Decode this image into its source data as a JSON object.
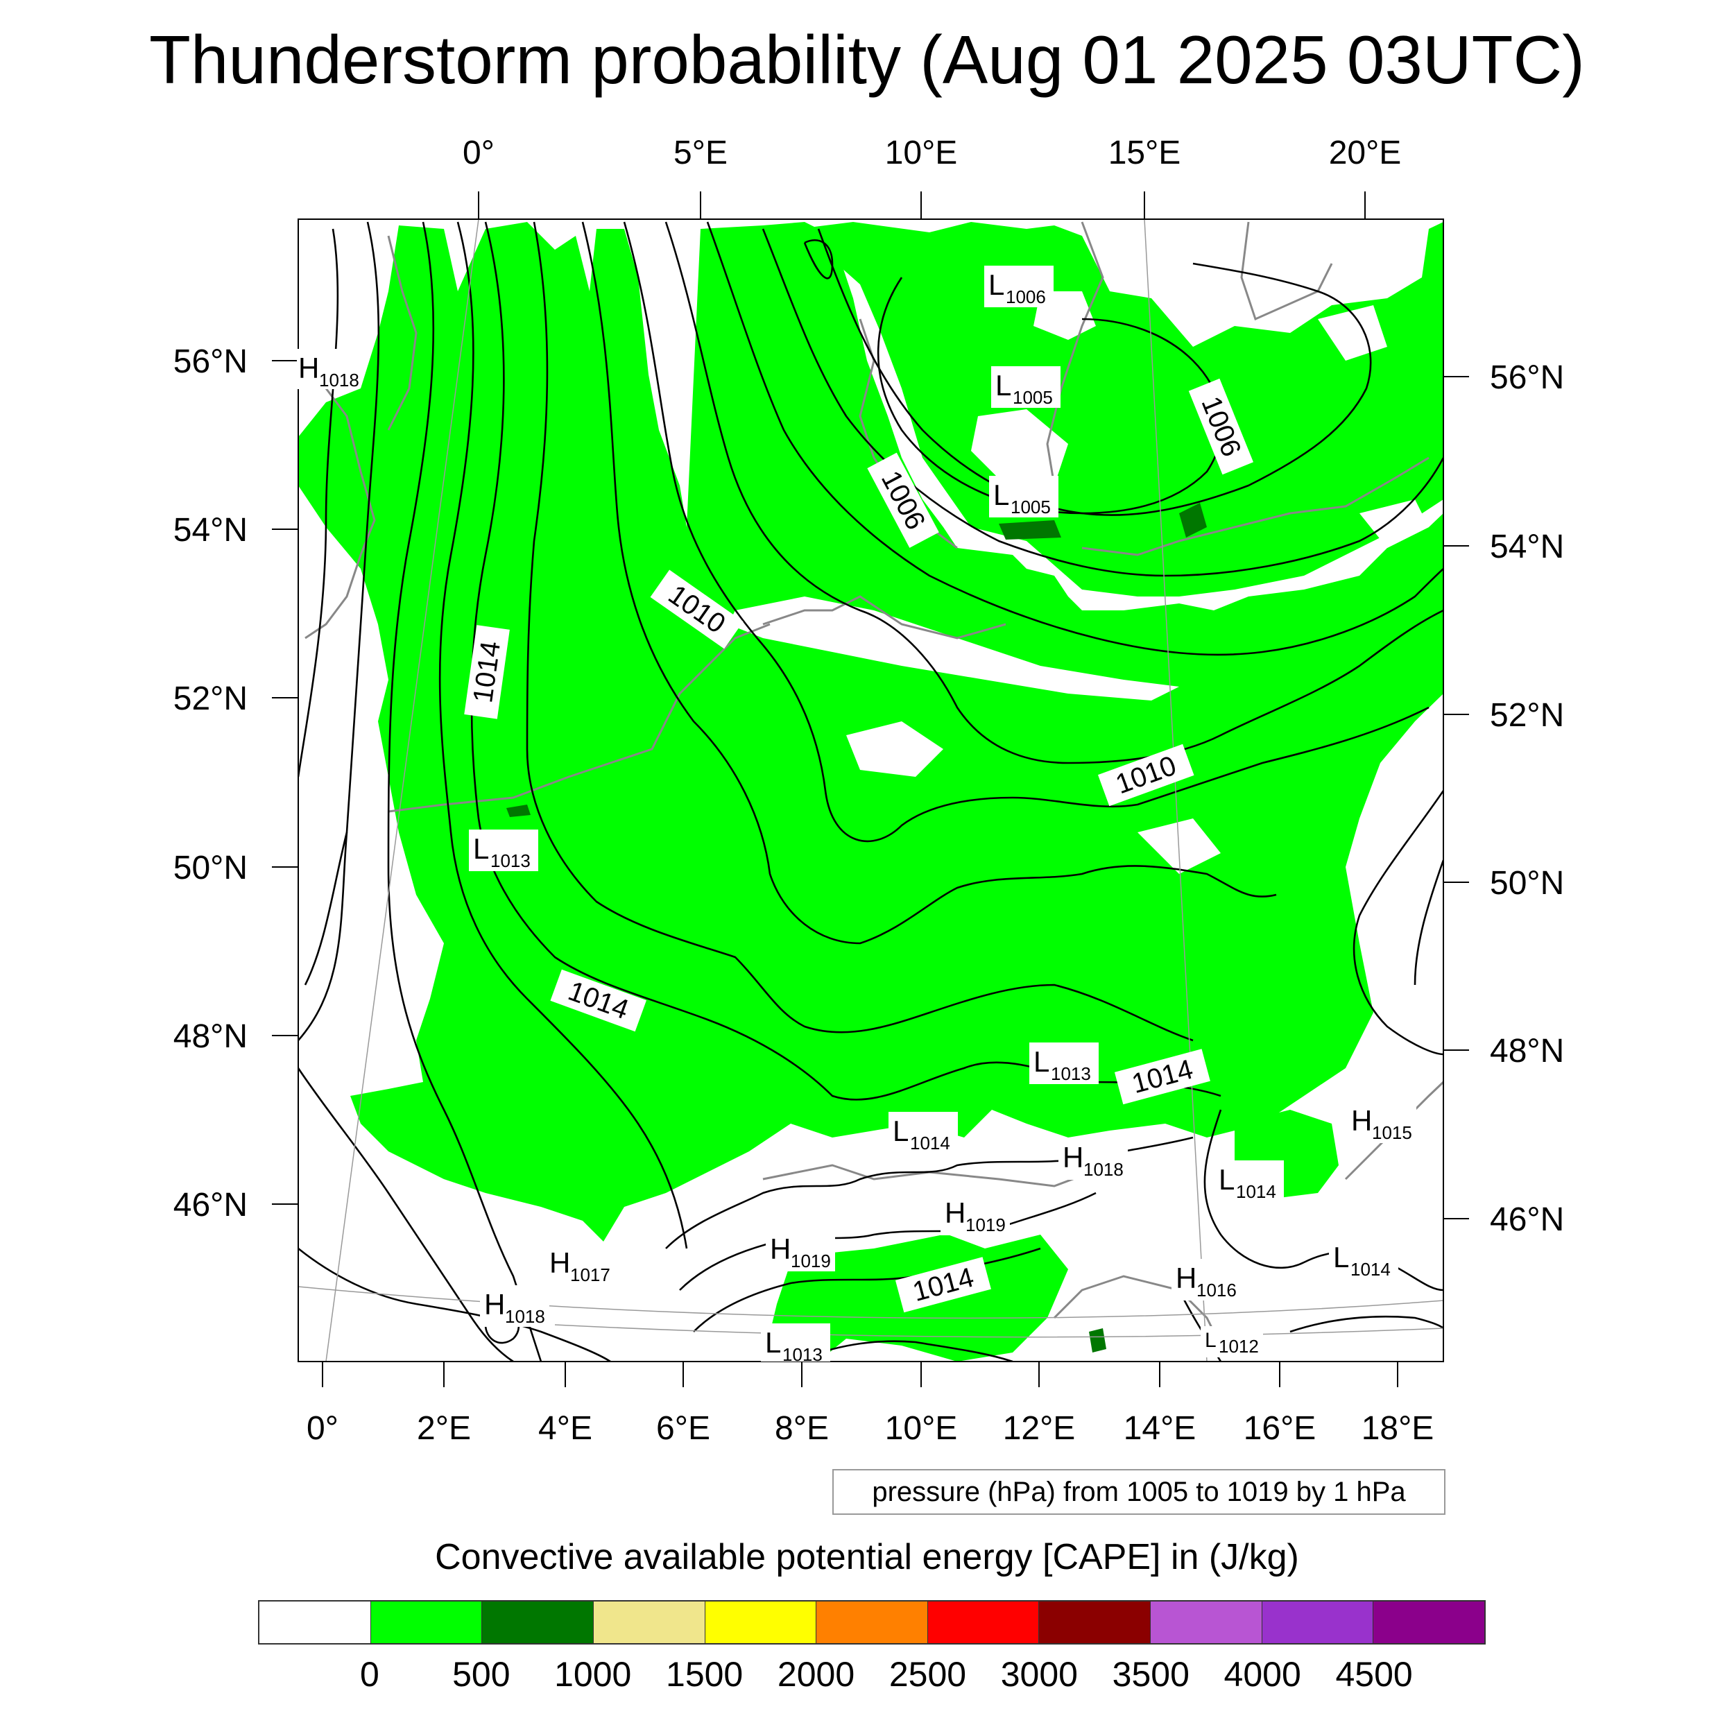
{
  "title": "Thunderstorm probability (Aug 01 2025 03UTC)",
  "top_lon_labels": [
    "0°",
    "5°E",
    "10°E",
    "15°E",
    "20°E"
  ],
  "bottom_lon_labels": [
    "0°",
    "2°E",
    "4°E",
    "6°E",
    "8°E",
    "10°E",
    "12°E",
    "14°E",
    "16°E",
    "18°E"
  ],
  "left_lat_labels": [
    "56°N",
    "54°N",
    "52°N",
    "50°N",
    "48°N",
    "46°N"
  ],
  "right_lat_labels": [
    "56°N",
    "54°N",
    "52°N",
    "50°N",
    "48°N",
    "46°N"
  ],
  "pressure_info": "pressure (hPa) from 1005 to 1019 by 1 hPa",
  "colorbar": {
    "title": "Convective available potential energy [CAPE] in (J/kg)",
    "colors": [
      "#ffffff",
      "#00ff00",
      "#007700",
      "#f0e68c",
      "#ffff00",
      "#ff8000",
      "#ff0000",
      "#8b0000",
      "#b855d3",
      "#9932cc",
      "#8b008b"
    ],
    "labels": [
      "0",
      "500",
      "1000",
      "1500",
      "2000",
      "2500",
      "3000",
      "3500",
      "4000",
      "4500"
    ]
  },
  "contour_labels": [
    "1014",
    "1010",
    "1006",
    "1006",
    "1010",
    "1014",
    "1014",
    "1014"
  ],
  "pressure_centers": [
    {
      "type": "H",
      "value": "1018"
    },
    {
      "type": "L",
      "value": "1006"
    },
    {
      "type": "L",
      "value": "1005"
    },
    {
      "type": "L",
      "value": "1005"
    },
    {
      "type": "L",
      "value": "1013"
    },
    {
      "type": "L",
      "value": "1013"
    },
    {
      "type": "L",
      "value": "1014"
    },
    {
      "type": "H",
      "value": "1018"
    },
    {
      "type": "H",
      "value": "1019"
    },
    {
      "type": "H",
      "value": "1019"
    },
    {
      "type": "H",
      "value": "1017"
    },
    {
      "type": "H",
      "value": "1018"
    },
    {
      "type": "L",
      "value": "1013"
    },
    {
      "type": "L",
      "value": "1014"
    },
    {
      "type": "H",
      "value": "1015"
    },
    {
      "type": "H",
      "value": "1016"
    },
    {
      "type": "L",
      "value": "1014"
    },
    {
      "type": "L",
      "value": "1012"
    }
  ]
}
